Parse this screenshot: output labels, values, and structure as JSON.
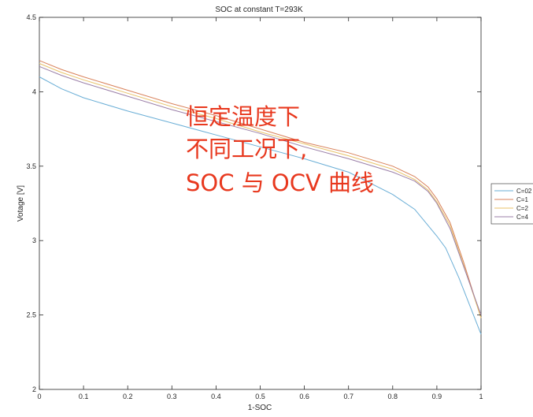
{
  "chart_data": {
    "type": "line",
    "title": "SOC at constant T=293K",
    "xlabel": "1-SOC",
    "ylabel": "Votage [V]",
    "xlim": [
      0,
      1
    ],
    "ylim": [
      2,
      4.5
    ],
    "xticks": [
      "0",
      "0.1",
      "0.2",
      "0.3",
      "0.4",
      "0.5",
      "0.6",
      "0.7",
      "0.8",
      "0.9",
      "1"
    ],
    "yticks": [
      "2",
      "2.5",
      "3",
      "3.5",
      "4",
      "4.5"
    ],
    "grid": false,
    "legend_position": "outside-right",
    "annotation_lines": [
      "恒定温度下",
      "不同工况下,",
      "SOC 与 OCV 曲线"
    ],
    "annotation_color": "#e8381e",
    "series": [
      {
        "name": "C=02",
        "color": "#6aaed6",
        "x": [
          0,
          0.05,
          0.1,
          0.2,
          0.3,
          0.4,
          0.5,
          0.6,
          0.7,
          0.8,
          0.85,
          0.9,
          0.92,
          0.95,
          1.0
        ],
        "y": [
          4.1,
          4.02,
          3.96,
          3.87,
          3.79,
          3.71,
          3.63,
          3.55,
          3.46,
          3.31,
          3.21,
          3.03,
          2.95,
          2.75,
          2.37
        ]
      },
      {
        "name": "C=1",
        "color": "#d9825b",
        "x": [
          0,
          0.05,
          0.1,
          0.2,
          0.3,
          0.4,
          0.5,
          0.6,
          0.7,
          0.8,
          0.85,
          0.88,
          0.9,
          0.93,
          0.96,
          1.0
        ],
        "y": [
          4.21,
          4.15,
          4.1,
          4.01,
          3.92,
          3.84,
          3.75,
          3.66,
          3.59,
          3.5,
          3.43,
          3.36,
          3.28,
          3.12,
          2.86,
          2.48
        ]
      },
      {
        "name": "C=2",
        "color": "#e8c36a",
        "x": [
          0,
          0.05,
          0.1,
          0.2,
          0.3,
          0.4,
          0.5,
          0.6,
          0.7,
          0.8,
          0.85,
          0.88,
          0.9,
          0.93,
          0.96,
          1.0
        ],
        "y": [
          4.19,
          4.13,
          4.08,
          3.99,
          3.9,
          3.82,
          3.73,
          3.65,
          3.57,
          3.48,
          3.41,
          3.34,
          3.26,
          3.1,
          2.84,
          2.48
        ]
      },
      {
        "name": "C=4",
        "color": "#9b7fa8",
        "x": [
          0,
          0.05,
          0.1,
          0.2,
          0.3,
          0.4,
          0.5,
          0.6,
          0.7,
          0.8,
          0.85,
          0.88,
          0.9,
          0.93,
          0.96,
          1.0
        ],
        "y": [
          4.17,
          4.11,
          4.06,
          3.97,
          3.88,
          3.8,
          3.72,
          3.63,
          3.55,
          3.46,
          3.4,
          3.33,
          3.25,
          3.08,
          2.83,
          2.5
        ]
      }
    ]
  }
}
